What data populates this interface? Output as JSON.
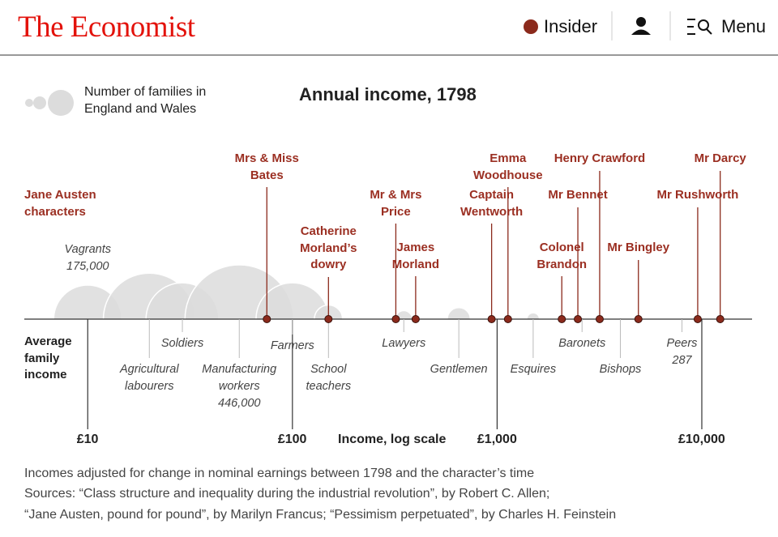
{
  "header": {
    "logo": "The Economist",
    "insider": "Insider",
    "menu": "Menu"
  },
  "chart_data": {
    "type": "scatter",
    "title": "Annual income, 1798",
    "size_legend": "Number of families in England and Wales",
    "row_label": "Average family income",
    "xlabel": "Income, log scale",
    "xscale": "log",
    "xlim": [
      4.9,
      17600
    ],
    "xticks": [
      {
        "value": 10,
        "label": "£10"
      },
      {
        "value": 100,
        "label": "£100"
      },
      {
        "value": 1000,
        "label": "£1,000"
      },
      {
        "value": 10000,
        "label": "£10,000"
      }
    ],
    "series": [
      {
        "color": "#dcdcdc",
        "categories": [
          "Vagrants",
          "Agricultural labourers",
          "Soldiers",
          "Manufacturing workers",
          "Farmers",
          "School teachers",
          "Lawyers",
          "Gentlemen",
          "Esquires",
          "Baronets",
          "Bishops",
          "Peers"
        ],
        "x": [
          10,
          20,
          29,
          55,
          100,
          150,
          350,
          650,
          1500,
          2600,
          4000,
          8000
        ],
        "sizes": [
          175000,
          320000,
          200000,
          446000,
          200000,
          30000,
          11000,
          20000,
          6000,
          540,
          26,
          287
        ],
        "size_labels": [
          "175,000",
          null,
          null,
          "446,000",
          null,
          null,
          null,
          null,
          null,
          null,
          null,
          "287"
        ]
      },
      {
        "name": "Jane Austen characters",
        "color": "#8b2a1c",
        "categories": [
          "Mrs & Miss Bates",
          "Catherine Morland’s dowry",
          "Mr & Mrs Price",
          "James Morland",
          "Captain Wentworth",
          "Emma Woodhouse",
          "Colonel Brandon",
          "Mr Bennet",
          "Henry Crawford",
          "Mr Bingley",
          "Mr Rushworth",
          "Mr Darcy"
        ],
        "x": [
          75,
          150,
          320,
          400,
          940,
          1130,
          2070,
          2480,
          3170,
          4900,
          9550,
          12300
        ]
      }
    ]
  },
  "footer": {
    "note": "Incomes adjusted for change in nominal earnings between 1798 and the character’s time",
    "sources": [
      "Sources: “Class structure and inequality during the industrial revolution”, by Robert C. Allen;",
      "“Jane Austen, pound for pound”, by Marilyn Francus; “Pessimism perpetuated”, by Charles H. Feinstein"
    ]
  }
}
